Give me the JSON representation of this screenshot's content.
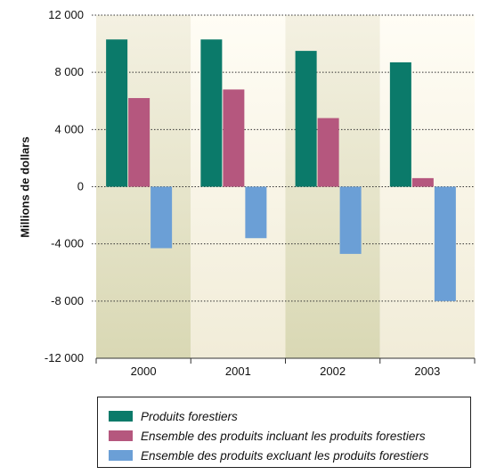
{
  "chart_data": {
    "type": "bar",
    "categories": [
      "2000",
      "2001",
      "2002",
      "2003"
    ],
    "series": [
      {
        "name": "Produits forestiers",
        "values": [
          10300,
          10300,
          9500,
          8700
        ],
        "color": "#0b7a6a"
      },
      {
        "name": "Ensemble des produits incluant les produits forestiers",
        "values": [
          6200,
          6800,
          4800,
          600
        ],
        "color": "#b5577e"
      },
      {
        "name": "Ensemble des produits excluant les produits forestiers",
        "values": [
          -4300,
          -3600,
          -4700,
          -8000
        ],
        "color": "#6b9fd6"
      }
    ],
    "ylabel": "Millions de dollars",
    "ylim": [
      -12000,
      12000
    ],
    "yticks": [
      12000,
      8000,
      4000,
      0,
      -4000,
      -8000,
      -12000
    ],
    "ytick_labels": [
      "12 000",
      "8 000",
      "4 000",
      "0",
      "-4 000",
      "-8 000",
      "-12 000"
    ],
    "grid": "horizontal dotted",
    "legend": "bottom",
    "band_colors": {
      "top_light": "#fbf8ec",
      "bottom_light": "#f2eedb",
      "top_dark": "#f2f0de",
      "bottom_dark": "#dcdcb9"
    }
  }
}
